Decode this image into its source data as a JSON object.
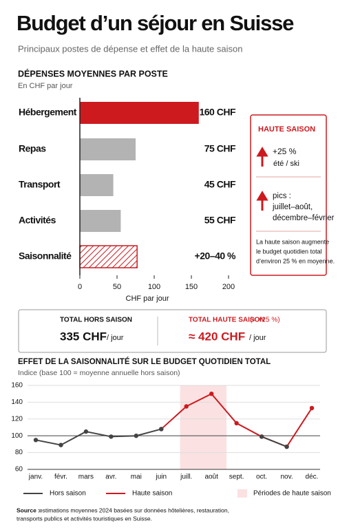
{
  "header": {
    "title": "Budget d’un séjour en Suisse",
    "subtitle": "Principaux postes de dépense et effet de la haute saison"
  },
  "chart_data": [
    {
      "type": "hbar",
      "title": "DÉPENSES MOYENNES PAR POSTE",
      "subtitle": "En CHF par jour",
      "xlabel": "CHF par jour",
      "categories": [
        "Hébergement",
        "Repas",
        "Transport",
        "Activités",
        "Saisonnalité"
      ],
      "values": [
        160,
        75,
        45,
        55,
        null
      ],
      "value_labels": [
        "160 CHF",
        "75 CHF",
        "45 CHF",
        "55 CHF",
        null
      ],
      "colors": [
        "#cc1a1f",
        "#b3b3b3",
        "#b3b3b3",
        "#b3b3b3",
        null
      ],
      "hatched_value": 77,
      "hatched_text": "+20–40 %",
      "hatch_color": "#cc1a1f",
      "xlim": [
        0,
        200
      ],
      "xticks": [
        0,
        50,
        100,
        150,
        200
      ]
    },
    {
      "type": "line",
      "title": "EFFET DE LA SAISONNALITÉ SUR LE BUDGET QUOTIDIEN TOTAL",
      "subtitle": "Indice (base 100 = moyenne annuelle hors saison)",
      "categories": [
        "janv.",
        "févr.",
        "mars",
        "avr.",
        "mai",
        "juin",
        "juill.",
        "août",
        "sept.",
        "oct.",
        "nov.",
        "déc."
      ],
      "series": [
        {
          "name": "Haute saison",
          "color": "#cc1a1f",
          "values": [
            null,
            null,
            null,
            null,
            null,
            108,
            135,
            150,
            115,
            99,
            87,
            133
          ]
        },
        {
          "name": "Hors saison",
          "color": "#444444",
          "values": [
            95,
            89,
            105,
            99,
            100,
            108,
            null,
            null,
            null,
            99,
            87,
            null
          ]
        }
      ],
      "shade_label": "Périodes de haute saison",
      "shade_color": "#fbe1e1",
      "baseline": 100,
      "ylim": [
        60,
        160
      ],
      "yticks": [
        60,
        80,
        100,
        120,
        140,
        160
      ],
      "grid": true
    }
  ],
  "sidebar": {
    "title": "HAUTE SAISON",
    "item1": "+25 %",
    "item1_sub": "été / ski",
    "item2": "pics :",
    "item2_a": "juillet–août,",
    "item2_b": "décembre–février",
    "note": [
      "La haute saison augmente",
      "le budget quotidien total",
      "d’environ 25 % en moyenne."
    ]
  },
  "totals": {
    "off_label": "TOTAL HORS SAISON",
    "off_value": "335 CHF",
    "off_unit": "/ jour",
    "high_label": "TOTAL HAUTE SAISON",
    "high_note": "(≈ +25 %)",
    "high_value": "≈ 420 CHF",
    "high_unit": "/ jour"
  },
  "source": {
    "label": "Source :",
    "text": [
      "estimations moyennes 2024 basées sur données hôtelières, restauration,",
      "transports publics et activités touristiques en Suisse."
    ]
  }
}
